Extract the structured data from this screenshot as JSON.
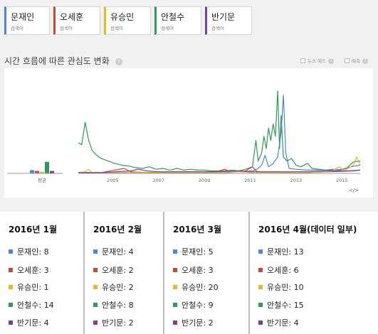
{
  "terms": [
    {
      "name": "문재인",
      "sub": "검색어",
      "color": "#4a86d9"
    },
    {
      "name": "오세훈",
      "sub": "검색어",
      "color": "#c44a3c"
    },
    {
      "name": "유승민",
      "sub": "검색어",
      "color": "#e8b825"
    },
    {
      "name": "안철수",
      "sub": "검색어",
      "color": "#2f9a55"
    },
    {
      "name": "반기문",
      "sub": "검색어",
      "color": "#7b3f9e"
    }
  ],
  "section": {
    "title": "시간 흐름에 따른 관심도 변화",
    "help_icon": "?",
    "opt_news": "뉴스 헤드",
    "opt_forecast": "예측",
    "embed_icon": "</>"
  },
  "chart_data": {
    "type": "line",
    "average_label": "평균",
    "average_values": [
      {
        "name": "문재인",
        "value": 4
      },
      {
        "name": "오세훈",
        "value": 3
      },
      {
        "name": "유승민",
        "value": 2
      },
      {
        "name": "안철수",
        "value": 14
      },
      {
        "name": "반기문",
        "value": 3
      }
    ],
    "x_ticks": [
      "2005",
      "2007",
      "2009",
      "2011",
      "2013",
      "2015"
    ],
    "xlim": [
      2004.0,
      2016.3
    ],
    "ylim": [
      0,
      100
    ],
    "series": [
      {
        "name": "안철수",
        "points": [
          [
            2004.0,
            37
          ],
          [
            2004.15,
            35
          ],
          [
            2004.3,
            62
          ],
          [
            2004.45,
            40
          ],
          [
            2004.6,
            28
          ],
          [
            2004.8,
            22
          ],
          [
            2005.0,
            18
          ],
          [
            2005.3,
            15
          ],
          [
            2005.6,
            12
          ],
          [
            2005.9,
            10
          ],
          [
            2006.2,
            9
          ],
          [
            2006.5,
            7
          ],
          [
            2006.8,
            6
          ],
          [
            2007.1,
            8
          ],
          [
            2007.4,
            5
          ],
          [
            2007.7,
            6
          ],
          [
            2008.0,
            4
          ],
          [
            2008.3,
            6
          ],
          [
            2008.6,
            4
          ],
          [
            2008.9,
            5
          ],
          [
            2009.2,
            4
          ],
          [
            2009.5,
            4
          ],
          [
            2009.8,
            3
          ],
          [
            2010.1,
            3
          ],
          [
            2010.4,
            3
          ],
          [
            2010.7,
            4
          ],
          [
            2011.0,
            3
          ],
          [
            2011.3,
            5
          ],
          [
            2011.6,
            8
          ],
          [
            2011.75,
            40
          ],
          [
            2011.85,
            15
          ],
          [
            2012.0,
            25
          ],
          [
            2012.1,
            45
          ],
          [
            2012.2,
            30
          ],
          [
            2012.3,
            55
          ],
          [
            2012.4,
            40
          ],
          [
            2012.5,
            60
          ],
          [
            2012.6,
            45
          ],
          [
            2012.7,
            100
          ],
          [
            2012.78,
            30
          ],
          [
            2012.85,
            70
          ],
          [
            2012.95,
            20
          ],
          [
            2013.1,
            15
          ],
          [
            2013.3,
            18
          ],
          [
            2013.5,
            10
          ],
          [
            2013.7,
            8
          ],
          [
            2014.0,
            12
          ],
          [
            2014.2,
            6
          ],
          [
            2014.5,
            5
          ],
          [
            2014.8,
            4
          ],
          [
            2015.1,
            5
          ],
          [
            2015.4,
            4
          ],
          [
            2015.7,
            6
          ],
          [
            2016.0,
            14
          ],
          [
            2016.3,
            15
          ]
        ]
      },
      {
        "name": "문재인",
        "points": [
          [
            2004.0,
            1
          ],
          [
            2005.0,
            1
          ],
          [
            2006.0,
            1
          ],
          [
            2007.0,
            1
          ],
          [
            2008.0,
            1
          ],
          [
            2009.0,
            1
          ],
          [
            2010.0,
            1
          ],
          [
            2010.5,
            1
          ],
          [
            2011.0,
            2
          ],
          [
            2011.6,
            3
          ],
          [
            2011.8,
            5
          ],
          [
            2012.0,
            10
          ],
          [
            2012.15,
            22
          ],
          [
            2012.3,
            8
          ],
          [
            2012.5,
            12
          ],
          [
            2012.7,
            20
          ],
          [
            2012.85,
            50
          ],
          [
            2012.95,
            95
          ],
          [
            2013.05,
            25
          ],
          [
            2013.2,
            6
          ],
          [
            2013.5,
            5
          ],
          [
            2014.0,
            4
          ],
          [
            2014.5,
            4
          ],
          [
            2015.0,
            4
          ],
          [
            2015.5,
            5
          ],
          [
            2015.9,
            8
          ],
          [
            2016.3,
            10
          ]
        ]
      },
      {
        "name": "오세훈",
        "points": [
          [
            2004.0,
            1
          ],
          [
            2005.0,
            1
          ],
          [
            2006.0,
            6
          ],
          [
            2006.3,
            2
          ],
          [
            2007.0,
            1
          ],
          [
            2008.0,
            2
          ],
          [
            2009.0,
            2
          ],
          [
            2010.0,
            2
          ],
          [
            2010.4,
            5
          ],
          [
            2010.6,
            2
          ],
          [
            2011.0,
            2
          ],
          [
            2011.3,
            3
          ],
          [
            2011.6,
            8
          ],
          [
            2011.8,
            2
          ],
          [
            2012.0,
            2
          ],
          [
            2013.0,
            1
          ],
          [
            2014.0,
            1
          ],
          [
            2015.0,
            2
          ],
          [
            2016.0,
            3
          ],
          [
            2016.3,
            4
          ]
        ]
      },
      {
        "name": "유승민",
        "points": [
          [
            2004.0,
            1
          ],
          [
            2004.3,
            2
          ],
          [
            2004.45,
            5
          ],
          [
            2004.6,
            1
          ],
          [
            2005.0,
            1
          ],
          [
            2006.0,
            1
          ],
          [
            2007.0,
            1
          ],
          [
            2008.0,
            1
          ],
          [
            2009.0,
            1
          ],
          [
            2010.0,
            1
          ],
          [
            2011.0,
            2
          ],
          [
            2011.5,
            1
          ],
          [
            2012.0,
            1
          ],
          [
            2013.0,
            1
          ],
          [
            2014.0,
            1
          ],
          [
            2015.0,
            2
          ],
          [
            2015.4,
            8
          ],
          [
            2015.6,
            3
          ],
          [
            2016.0,
            10
          ],
          [
            2016.15,
            20
          ],
          [
            2016.3,
            10
          ]
        ]
      },
      {
        "name": "반기문",
        "points": [
          [
            2004.0,
            1
          ],
          [
            2005.0,
            1
          ],
          [
            2006.3,
            3
          ],
          [
            2006.6,
            5
          ],
          [
            2007.0,
            3
          ],
          [
            2007.5,
            2
          ],
          [
            2008.0,
            2
          ],
          [
            2009.0,
            2
          ],
          [
            2010.0,
            2
          ],
          [
            2011.0,
            3
          ],
          [
            2011.5,
            2
          ],
          [
            2012.0,
            2
          ],
          [
            2013.0,
            2
          ],
          [
            2014.0,
            2
          ],
          [
            2015.0,
            3
          ],
          [
            2015.8,
            3
          ],
          [
            2016.3,
            4
          ]
        ]
      }
    ]
  },
  "months": [
    {
      "title": "2016년 1월",
      "values": [
        {
          "name": "문재인",
          "value": "8"
        },
        {
          "name": "오세훈",
          "value": "3"
        },
        {
          "name": "유승민",
          "value": "1"
        },
        {
          "name": "안철수",
          "value": "14"
        },
        {
          "name": "반기문",
          "value": "4"
        }
      ]
    },
    {
      "title": "2016년 2월",
      "values": [
        {
          "name": "문재인",
          "value": "4"
        },
        {
          "name": "오세훈",
          "value": "2"
        },
        {
          "name": "유승민",
          "value": "2"
        },
        {
          "name": "안철수",
          "value": "8"
        },
        {
          "name": "반기문",
          "value": "2"
        }
      ]
    },
    {
      "title": "2016년 3월",
      "values": [
        {
          "name": "문재인",
          "value": "5"
        },
        {
          "name": "오세훈",
          "value": "3"
        },
        {
          "name": "유승민",
          "value": "20"
        },
        {
          "name": "안철수",
          "value": "9"
        },
        {
          "name": "반기문",
          "value": "2"
        }
      ]
    },
    {
      "title": "2016년 4월(데이터 일부)",
      "values": [
        {
          "name": "문재인",
          "value": "13"
        },
        {
          "name": "오세훈",
          "value": "6"
        },
        {
          "name": "유승민",
          "value": "10"
        },
        {
          "name": "안철수",
          "value": "15"
        },
        {
          "name": "반기문",
          "value": "4"
        }
      ]
    }
  ]
}
